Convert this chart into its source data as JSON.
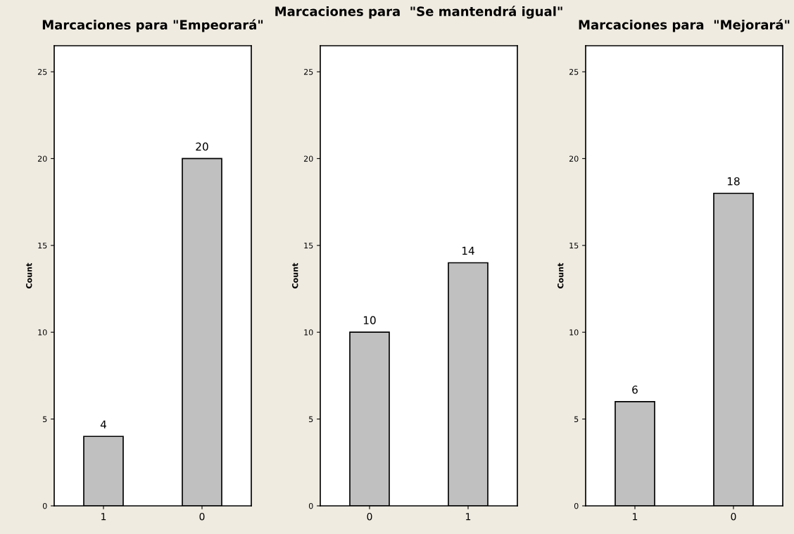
{
  "chart_data": [
    {
      "type": "bar",
      "title": "Marcaciones para \"Empeorará\"",
      "ylabel": "Count",
      "categories": [
        "1",
        "0"
      ],
      "values": [
        4,
        20
      ],
      "color": "#c0c0c0",
      "ylim": [
        0,
        26.5
      ],
      "yticks": [
        0,
        5,
        10,
        15,
        20,
        25
      ],
      "data_labels": true,
      "grid": false,
      "legend": false
    },
    {
      "type": "bar",
      "title": "Marcaciones para  \"Se mantendrá igual\"",
      "ylabel": "Count",
      "categories": [
        "0",
        "1"
      ],
      "values": [
        10,
        14
      ],
      "color": "#c0c0c0",
      "ylim": [
        0,
        26.5
      ],
      "yticks": [
        0,
        5,
        10,
        15,
        20,
        25
      ],
      "data_labels": true,
      "grid": false,
      "legend": false
    },
    {
      "type": "bar",
      "title": "Marcaciones para  \"Mejorará\"",
      "ylabel": "Count",
      "categories": [
        "1",
        "0"
      ],
      "values": [
        6,
        18
      ],
      "color": "#c0c0c0",
      "ylim": [
        0,
        26.5
      ],
      "yticks": [
        0,
        5,
        10,
        15,
        20,
        25
      ],
      "data_labels": true,
      "grid": false,
      "legend": false
    }
  ]
}
